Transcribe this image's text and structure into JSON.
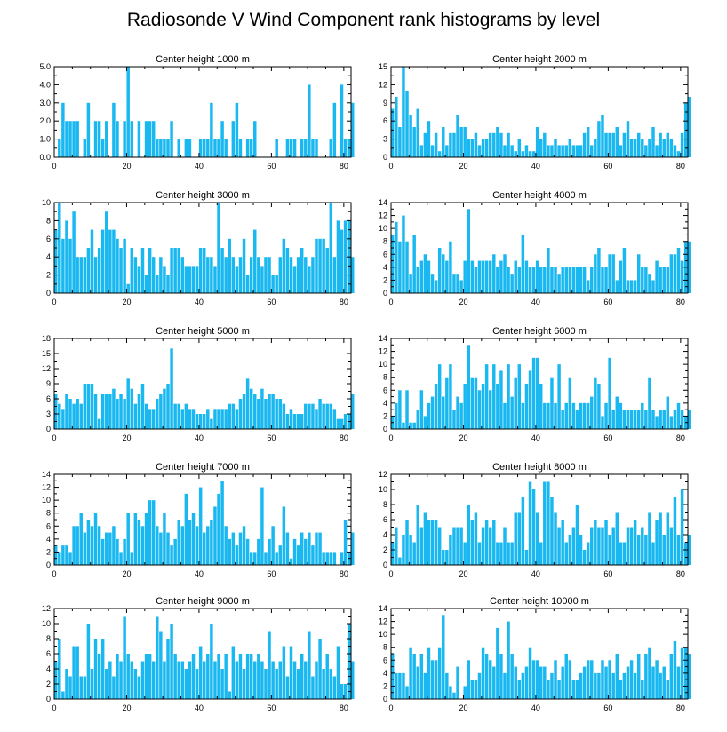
{
  "title": "Radiosonde V Wind Component rank histograms by level",
  "colors": {
    "bar": "#1ab8f0",
    "axis": "#000000"
  },
  "chart_data": [
    {
      "type": "bar",
      "title": "Center height 1000 m",
      "xlim": [
        0,
        82
      ],
      "ylim": [
        0,
        5
      ],
      "xticks": [
        "0",
        "20",
        "40",
        "60",
        "80"
      ],
      "yticks": [
        "0.0",
        "1.0",
        "2.0",
        "3.0",
        "4.0",
        "5.0"
      ],
      "values": [
        0,
        1,
        3,
        2,
        2,
        2,
        2,
        0,
        1,
        3,
        0,
        2,
        2,
        1,
        2,
        0,
        3,
        2,
        0,
        2,
        5,
        2,
        0,
        2,
        0,
        2,
        2,
        2,
        1,
        1,
        1,
        1,
        2,
        0,
        1,
        0,
        1,
        1,
        0,
        0,
        1,
        1,
        1,
        3,
        1,
        1,
        2,
        1,
        0,
        2,
        3,
        1,
        0,
        1,
        1,
        2,
        0,
        0,
        0,
        0,
        0,
        1,
        0,
        0,
        1,
        1,
        1,
        0,
        1,
        1,
        4,
        1,
        1,
        0,
        0,
        0,
        1,
        3,
        0,
        4,
        1,
        1,
        3
      ]
    },
    {
      "type": "bar",
      "title": "Center height 2000 m",
      "xlim": [
        0,
        82
      ],
      "ylim": [
        0,
        15
      ],
      "xticks": [
        "0",
        "20",
        "40",
        "60",
        "80"
      ],
      "yticks": [
        "0",
        "3",
        "6",
        "9",
        "12",
        "15"
      ],
      "values": [
        8,
        10,
        5,
        15,
        11,
        7,
        5,
        8,
        2,
        4,
        6,
        2,
        4,
        1,
        5,
        2,
        4,
        4,
        7,
        5,
        5,
        3,
        3,
        4,
        2,
        3,
        3,
        4,
        4,
        5,
        4,
        2,
        4,
        2,
        1,
        3,
        1,
        2,
        1,
        1,
        5,
        3,
        4,
        2,
        2,
        3,
        2,
        2,
        2,
        3,
        2,
        2,
        2,
        4,
        5,
        2,
        3,
        6,
        7,
        4,
        4,
        4,
        5,
        2,
        4,
        6,
        3,
        3,
        4,
        3,
        2,
        3,
        5,
        2,
        4,
        3,
        4,
        3,
        2,
        1,
        4,
        9,
        10
      ]
    },
    {
      "type": "bar",
      "title": "Center height 3000 m",
      "xlim": [
        0,
        82
      ],
      "ylim": [
        0,
        10
      ],
      "xticks": [
        "0",
        "20",
        "40",
        "60",
        "80"
      ],
      "yticks": [
        "0",
        "2",
        "4",
        "6",
        "8",
        "10"
      ],
      "values": [
        7,
        10,
        6,
        8,
        6,
        9,
        4,
        4,
        4,
        5,
        7,
        4,
        5,
        7,
        9,
        7,
        7,
        6,
        5,
        6,
        1,
        5,
        4,
        3,
        5,
        2,
        5,
        4,
        2,
        4,
        3,
        2,
        5,
        5,
        5,
        4,
        3,
        3,
        3,
        3,
        5,
        5,
        4,
        4,
        3,
        10,
        5,
        4,
        6,
        4,
        3,
        4,
        6,
        2,
        4,
        7,
        4,
        3,
        4,
        4,
        2,
        2,
        4,
        6,
        5,
        4,
        3,
        4,
        5,
        4,
        3,
        4,
        6,
        6,
        6,
        5,
        10,
        4,
        8,
        7,
        8,
        8,
        4
      ]
    },
    {
      "type": "bar",
      "title": "Center height 4000 m",
      "xlim": [
        0,
        82
      ],
      "ylim": [
        0,
        14
      ],
      "xticks": [
        "0",
        "20",
        "40",
        "60",
        "80"
      ],
      "yticks": [
        "0",
        "2",
        "4",
        "6",
        "8",
        "10",
        "12",
        "14"
      ],
      "values": [
        9,
        11,
        8,
        12,
        8,
        3,
        9,
        4,
        5,
        6,
        5,
        3,
        2,
        7,
        6,
        5,
        8,
        3,
        3,
        2,
        5,
        13,
        5,
        4,
        5,
        5,
        5,
        5,
        6,
        4,
        5,
        6,
        4,
        3,
        5,
        4,
        9,
        5,
        4,
        4,
        5,
        4,
        4,
        7,
        4,
        4,
        3,
        4,
        4,
        4,
        4,
        4,
        4,
        4,
        2,
        4,
        6,
        7,
        4,
        4,
        6,
        6,
        2,
        5,
        7,
        2,
        2,
        2,
        6,
        4,
        4,
        3,
        2,
        5,
        4,
        4,
        4,
        6,
        6,
        7,
        5,
        8,
        8
      ]
    },
    {
      "type": "bar",
      "title": "Center height 5000 m",
      "xlim": [
        0,
        82
      ],
      "ylim": [
        0,
        18
      ],
      "xticks": [
        "0",
        "20",
        "40",
        "60",
        "80"
      ],
      "yticks": [
        "0",
        "3",
        "6",
        "9",
        "12",
        "15",
        "18"
      ],
      "values": [
        7,
        5,
        4,
        7,
        6,
        5,
        6,
        5,
        9,
        9,
        9,
        7,
        2,
        7,
        7,
        7,
        8,
        6,
        7,
        6,
        10,
        8,
        5,
        7,
        9,
        5,
        4,
        4,
        6,
        7,
        8,
        9,
        16,
        5,
        5,
        4,
        5,
        4,
        4,
        3,
        3,
        3,
        4,
        2,
        4,
        4,
        4,
        4,
        5,
        5,
        4,
        6,
        7,
        10,
        8,
        7,
        6,
        8,
        6,
        7,
        7,
        6,
        6,
        5,
        3,
        4,
        3,
        3,
        3,
        5,
        5,
        5,
        4,
        6,
        5,
        5,
        5,
        4,
        2,
        2,
        3,
        3,
        7
      ]
    },
    {
      "type": "bar",
      "title": "Center height 6000 m",
      "xlim": [
        0,
        82
      ],
      "ylim": [
        0,
        14
      ],
      "xticks": [
        "0",
        "20",
        "40",
        "60",
        "80"
      ],
      "yticks": [
        "0",
        "2",
        "4",
        "6",
        "8",
        "10",
        "12",
        "14"
      ],
      "values": [
        2,
        4,
        6,
        1,
        6,
        1,
        1,
        3,
        6,
        2,
        4,
        5,
        7,
        10,
        5,
        8,
        10,
        3,
        5,
        4,
        7,
        13,
        8,
        8,
        6,
        7,
        10,
        6,
        10,
        7,
        9,
        4,
        10,
        5,
        8,
        10,
        4,
        7,
        9,
        11,
        11,
        7,
        4,
        4,
        8,
        4,
        10,
        3,
        4,
        8,
        4,
        3,
        4,
        4,
        4,
        5,
        8,
        7,
        2,
        4,
        11,
        3,
        5,
        4,
        3,
        3,
        3,
        3,
        3,
        4,
        3,
        8,
        3,
        2,
        3,
        3,
        5,
        2,
        3,
        4,
        3,
        2,
        3
      ]
    },
    {
      "type": "bar",
      "title": "Center height 7000 m",
      "xlim": [
        0,
        82
      ],
      "ylim": [
        0,
        14
      ],
      "xticks": [
        "0",
        "20",
        "40",
        "60",
        "80"
      ],
      "yticks": [
        "0",
        "2",
        "4",
        "6",
        "8",
        "10",
        "12",
        "14"
      ],
      "values": [
        3,
        2,
        3,
        3,
        2,
        6,
        6,
        8,
        5,
        7,
        6,
        8,
        6,
        4,
        5,
        5,
        6,
        4,
        2,
        4,
        8,
        2,
        8,
        7,
        6,
        8,
        10,
        10,
        6,
        5,
        8,
        5,
        3,
        4,
        7,
        6,
        11,
        7,
        8,
        6,
        12,
        5,
        6,
        7,
        9,
        11,
        13,
        6,
        4,
        5,
        3,
        5,
        6,
        4,
        2,
        2,
        4,
        12,
        2,
        4,
        6,
        2,
        3,
        9,
        5,
        1,
        4,
        3,
        5,
        4,
        5,
        3,
        5,
        5,
        2,
        2,
        2,
        2,
        0,
        2,
        7,
        2,
        5
      ]
    },
    {
      "type": "bar",
      "title": "Center height 8000 m",
      "xlim": [
        0,
        82
      ],
      "ylim": [
        0,
        12
      ],
      "xticks": [
        "0",
        "20",
        "40",
        "60",
        "80"
      ],
      "yticks": [
        "0",
        "2",
        "4",
        "6",
        "8",
        "10",
        "12"
      ],
      "values": [
        3,
        5,
        1,
        4,
        6,
        4,
        3,
        8,
        5,
        7,
        6,
        6,
        6,
        5,
        2,
        2,
        4,
        5,
        5,
        5,
        3,
        8,
        6,
        7,
        3,
        5,
        6,
        5,
        6,
        3,
        3,
        5,
        3,
        3,
        7,
        7,
        9,
        2,
        11,
        10,
        7,
        3,
        11,
        11,
        9,
        7,
        5,
        6,
        3,
        4,
        5,
        8,
        4,
        2,
        3,
        5,
        6,
        5,
        5,
        6,
        4,
        5,
        7,
        3,
        3,
        5,
        5,
        6,
        4,
        5,
        4,
        7,
        3,
        6,
        7,
        4,
        7,
        5,
        9,
        4,
        10,
        3,
        4
      ]
    },
    {
      "type": "bar",
      "title": "Center height 9000 m",
      "xlim": [
        0,
        82
      ],
      "ylim": [
        0,
        12
      ],
      "xticks": [
        "0",
        "20",
        "40",
        "60",
        "80"
      ],
      "yticks": [
        "0",
        "2",
        "4",
        "6",
        "8",
        "10",
        "12"
      ],
      "values": [
        5,
        8,
        1,
        4,
        3,
        7,
        7,
        3,
        3,
        10,
        4,
        8,
        6,
        8,
        4,
        5,
        3,
        6,
        5,
        11,
        6,
        5,
        4,
        3,
        5,
        6,
        6,
        5,
        11,
        9,
        5,
        8,
        10,
        6,
        5,
        5,
        4,
        5,
        6,
        4,
        7,
        5,
        6,
        10,
        5,
        6,
        4,
        6,
        1,
        7,
        5,
        6,
        4,
        6,
        6,
        5,
        6,
        5,
        4,
        9,
        5,
        4,
        5,
        7,
        3,
        7,
        5,
        4,
        6,
        5,
        9,
        3,
        5,
        8,
        4,
        6,
        4,
        3,
        7,
        2,
        2,
        10,
        5
      ]
    },
    {
      "type": "bar",
      "title": "Center height 10000 m",
      "xlim": [
        0,
        82
      ],
      "ylim": [
        0,
        14
      ],
      "xticks": [
        "0",
        "20",
        "40",
        "60",
        "80"
      ],
      "yticks": [
        "0",
        "2",
        "4",
        "6",
        "8",
        "10",
        "12",
        "14"
      ],
      "values": [
        7,
        4,
        4,
        4,
        2,
        8,
        7,
        5,
        7,
        4,
        8,
        6,
        6,
        8,
        13,
        4,
        2,
        1,
        5,
        0,
        2,
        6,
        3,
        3,
        4,
        8,
        7,
        6,
        5,
        11,
        7,
        4,
        12,
        7,
        5,
        3,
        4,
        5,
        8,
        6,
        6,
        5,
        5,
        3,
        4,
        6,
        3,
        5,
        7,
        6,
        3,
        3,
        4,
        5,
        6,
        6,
        4,
        4,
        6,
        5,
        6,
        4,
        7,
        3,
        4,
        5,
        6,
        4,
        7,
        3,
        7,
        8,
        5,
        6,
        4,
        5,
        3,
        7,
        9,
        5,
        8,
        8,
        7
      ]
    }
  ]
}
